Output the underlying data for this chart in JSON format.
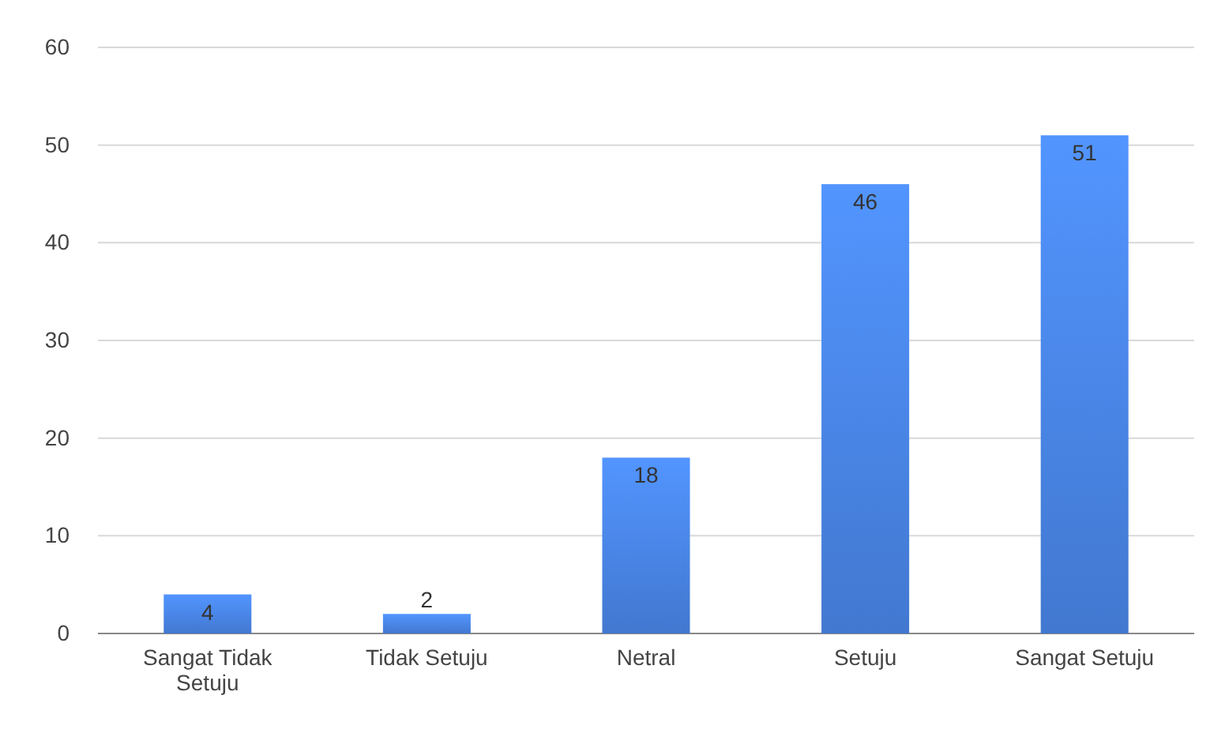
{
  "chart_data": {
    "type": "bar",
    "categories": [
      "Sangat Tidak Setuju",
      "Tidak Setuju",
      "Netral",
      "Setuju",
      "Sangat Setuju"
    ],
    "values": [
      4,
      2,
      18,
      46,
      51
    ],
    "color": "#4a86e8",
    "ylim": [
      0,
      60
    ],
    "yticks": [
      0,
      10,
      20,
      30,
      40,
      50,
      60
    ],
    "grid": "y",
    "data_labels": true
  }
}
